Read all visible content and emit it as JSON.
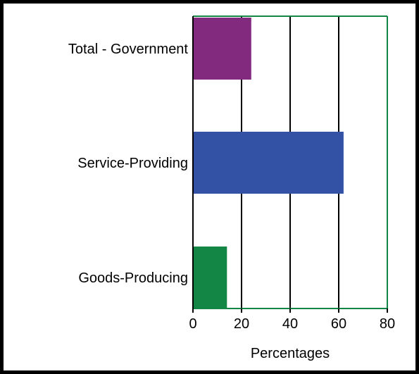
{
  "chart_data": {
    "type": "bar",
    "orientation": "horizontal",
    "categories": [
      "Total - Government",
      "Service-Providing",
      "Goods-Producing"
    ],
    "values": [
      24,
      62,
      14
    ],
    "colors": [
      "#822a7e",
      "#3352a5",
      "#138545"
    ],
    "title": "",
    "xlabel": "Percentages",
    "ylabel": "",
    "xlim": [
      0,
      80
    ],
    "xticks": [
      0,
      20,
      40,
      60,
      80
    ],
    "xtick_labels": [
      "0",
      "20",
      "40",
      "60",
      "80"
    ],
    "grid": "vertical",
    "legend": "none",
    "axis_frame_color": "#138545"
  }
}
